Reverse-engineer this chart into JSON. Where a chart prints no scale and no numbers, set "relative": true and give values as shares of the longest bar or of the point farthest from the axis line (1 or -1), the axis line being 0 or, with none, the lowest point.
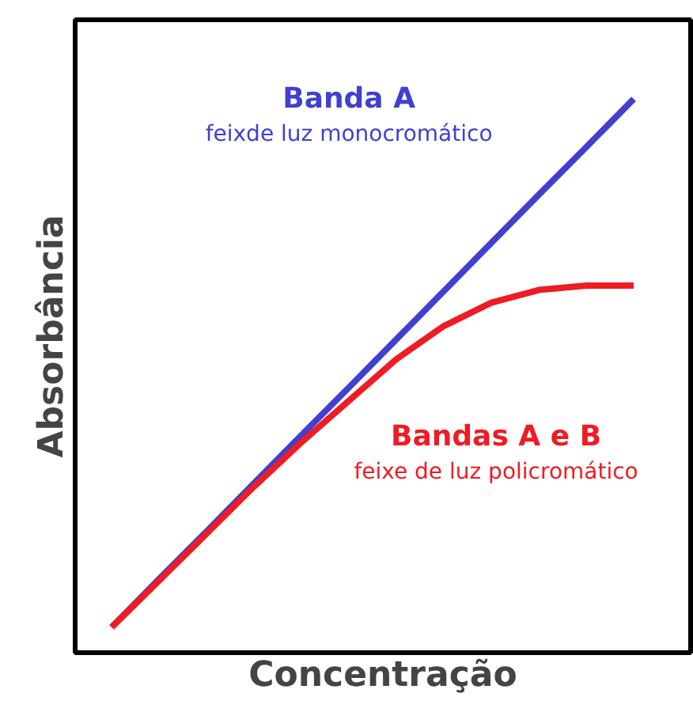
{
  "chart_data": {
    "type": "line",
    "relative": true,
    "xlabel": "Concentração",
    "ylabel": "Absorbância",
    "categories": [
      null,
      null,
      null,
      null,
      null,
      null,
      null,
      null,
      null,
      null,
      null,
      null
    ],
    "series": [
      {
        "name": "Banda A",
        "color": "#4040d0",
        "values": [
          0.046,
          0.133,
          0.219,
          0.306,
          0.393,
          0.479,
          0.566,
          0.653,
          0.74,
          0.827,
          0.913,
          1.0
        ]
      },
      {
        "name": "Bandas A e B",
        "color": "#ee1c24",
        "values": [
          0.046,
          0.13,
          0.215,
          0.3,
          0.38,
          0.455,
          0.53,
          0.59,
          0.632,
          0.655,
          0.663,
          0.663
        ]
      }
    ],
    "annotations": [
      "feixde luz monocromático",
      "feixe de luz policromático"
    ],
    "marker": "none",
    "line_style": "solid"
  }
}
